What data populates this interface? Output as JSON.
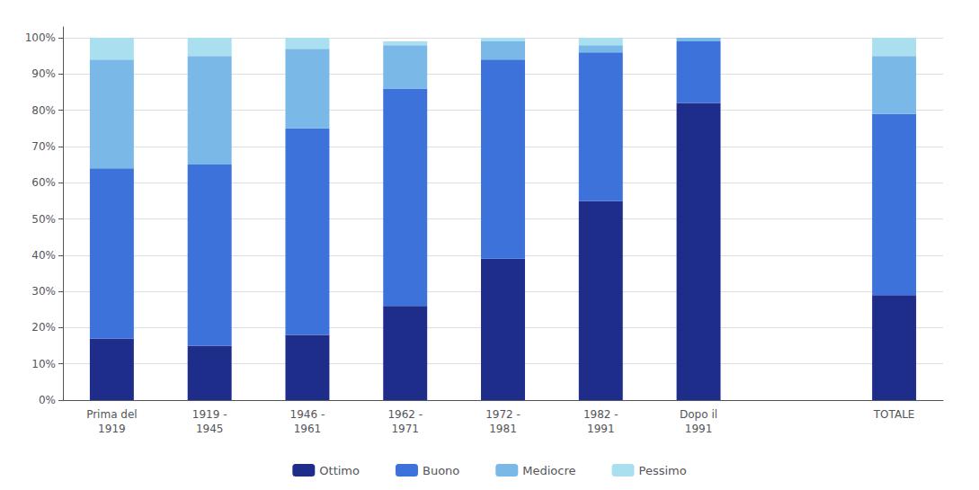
{
  "chart_data": {
    "type": "bar",
    "stacked": true,
    "categories": [
      "Prima del\n1919",
      "1919 -\n1945",
      "1946 -\n1961",
      "1962 -\n1971",
      "1972 -\n1981",
      "1982 -\n1991",
      "Dopo il\n1991",
      null,
      "TOTALE"
    ],
    "series": [
      {
        "name": "Ottimo",
        "color": "#1F2D8A",
        "values": [
          17.0,
          15.0,
          18.0,
          26.0,
          39.0,
          55.0,
          82.0,
          0,
          29.0
        ]
      },
      {
        "name": "Buono",
        "color": "#3C72D9",
        "values": [
          47.0,
          50.0,
          57.0,
          60.0,
          55.0,
          41.0,
          17.0,
          0,
          50.0
        ]
      },
      {
        "name": "Mediocre",
        "color": "#7AB8E8",
        "values": [
          30.0,
          30.0,
          22.0,
          12.0,
          5.0,
          2.0,
          1.0,
          0,
          16.0
        ]
      },
      {
        "name": "Pessimo",
        "color": "#AADFF0",
        "values": [
          6.0,
          5.0,
          3.0,
          1.0,
          1.0,
          2.0,
          0.0,
          0,
          5.0
        ]
      }
    ],
    "ylim": [
      0,
      103
    ],
    "yticks": [
      {
        "value": 0,
        "label": "0%"
      },
      {
        "value": 10,
        "label": "10%"
      },
      {
        "value": 20,
        "label": "20%"
      },
      {
        "value": 30,
        "label": "30%"
      },
      {
        "value": 40,
        "label": "40%"
      },
      {
        "value": 50,
        "label": "50%"
      },
      {
        "value": 60,
        "label": "60%"
      },
      {
        "value": 70,
        "label": "70%"
      },
      {
        "value": 80,
        "label": "80%"
      },
      {
        "value": 90,
        "label": "90%"
      },
      {
        "value": 100,
        "label": "100%"
      }
    ],
    "grid": true,
    "legend": "bottom"
  }
}
